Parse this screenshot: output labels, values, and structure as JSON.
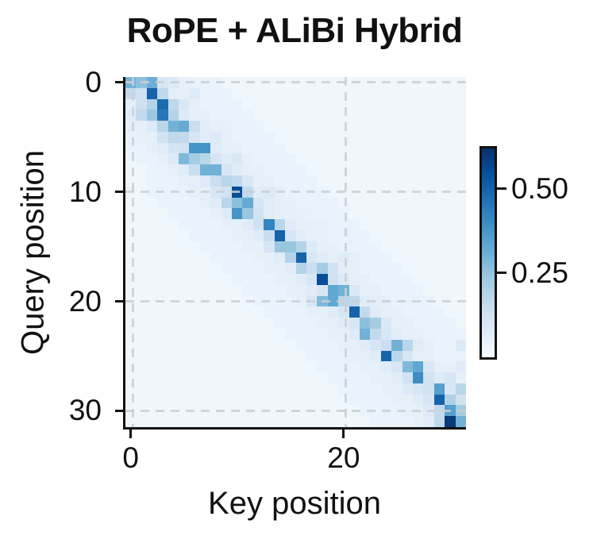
{
  "title": "RoPE + ALiBi Hybrid",
  "colors": {
    "text": "#111111",
    "spine": "#111111",
    "gridline": "#cbcfd4",
    "background": "#ffffff",
    "colormap_name": "Blues",
    "colormap_anchors": [
      "#f7fbff",
      "#deebf7",
      "#c6dbef",
      "#9ecae1",
      "#6baed6",
      "#4292c6",
      "#2171b5",
      "#08519c",
      "#08306b"
    ]
  },
  "chart_data": {
    "type": "heatmap",
    "title": "RoPE + ALiBi Hybrid",
    "xlabel": "Key position",
    "ylabel": "Query position",
    "n_rows": 32,
    "n_cols": 32,
    "colormap": "Blues",
    "vmin": 0,
    "vmax": 0.62,
    "grid": "dashed gridlines at tick positions, drawn over cells",
    "legend_position": "colorbar right",
    "x_ticks": [
      {
        "value": 0,
        "label": "0"
      },
      {
        "value": 20,
        "label": "20"
      }
    ],
    "y_ticks": [
      {
        "value": 0,
        "label": "0"
      },
      {
        "value": 10,
        "label": "10"
      },
      {
        "value": 20,
        "label": "20"
      },
      {
        "value": 30,
        "label": "30"
      }
    ],
    "colorbar_ticks": [
      {
        "value": 0.25,
        "label": "0.25"
      },
      {
        "value": 0.5,
        "label": "0.50"
      }
    ],
    "values": [
      [
        0.3,
        0.26,
        0.31,
        0.1,
        0.08,
        0.05,
        0.04,
        0.04,
        0.04,
        0.025,
        0.025,
        0.025,
        0.025,
        0.025,
        0.025,
        0.025,
        0.025,
        0.025,
        0.025,
        0.025,
        0.025,
        0.025,
        0.025,
        0.025,
        0.025,
        0.025,
        0.025,
        0.025,
        0.025,
        0.025,
        0.025,
        0.025
      ],
      [
        0.16,
        0.13,
        0.5,
        0.17,
        0.06,
        0.055,
        0.08,
        0.04,
        0.04,
        0.04,
        0.025,
        0.025,
        0.025,
        0.025,
        0.025,
        0.025,
        0.025,
        0.025,
        0.025,
        0.025,
        0.025,
        0.025,
        0.025,
        0.025,
        0.025,
        0.025,
        0.025,
        0.025,
        0.025,
        0.025,
        0.025,
        0.025
      ],
      [
        0.06,
        0.13,
        0.19,
        0.48,
        0.17,
        0.09,
        0.055,
        0.04,
        0.04,
        0.04,
        0.04,
        0.025,
        0.025,
        0.025,
        0.025,
        0.025,
        0.025,
        0.025,
        0.025,
        0.025,
        0.025,
        0.025,
        0.025,
        0.025,
        0.025,
        0.025,
        0.025,
        0.025,
        0.025,
        0.025,
        0.025,
        0.025
      ],
      [
        0.07,
        0.16,
        0.24,
        0.45,
        0.19,
        0.08,
        0.055,
        0.055,
        0.04,
        0.04,
        0.04,
        0.04,
        0.025,
        0.025,
        0.025,
        0.025,
        0.025,
        0.025,
        0.025,
        0.025,
        0.025,
        0.025,
        0.025,
        0.025,
        0.025,
        0.025,
        0.025,
        0.025,
        0.025,
        0.025,
        0.025,
        0.025
      ],
      [
        0.055,
        0.055,
        0.08,
        0.18,
        0.3,
        0.32,
        0.14,
        0.07,
        0.055,
        0.055,
        0.04,
        0.04,
        0.04,
        0.025,
        0.025,
        0.025,
        0.025,
        0.025,
        0.025,
        0.025,
        0.025,
        0.025,
        0.025,
        0.025,
        0.025,
        0.025,
        0.025,
        0.025,
        0.025,
        0.025,
        0.025,
        0.025
      ],
      [
        0.04,
        0.055,
        0.055,
        0.12,
        0.17,
        0.16,
        0.1,
        0.07,
        0.08,
        0.055,
        0.04,
        0.04,
        0.04,
        0.04,
        0.025,
        0.025,
        0.025,
        0.025,
        0.025,
        0.025,
        0.025,
        0.025,
        0.025,
        0.025,
        0.025,
        0.025,
        0.025,
        0.025,
        0.025,
        0.025,
        0.025,
        0.025
      ],
      [
        0.04,
        0.04,
        0.055,
        0.07,
        0.11,
        0.12,
        0.38,
        0.38,
        0.07,
        0.055,
        0.06,
        0.04,
        0.04,
        0.04,
        0.04,
        0.025,
        0.025,
        0.025,
        0.025,
        0.025,
        0.025,
        0.025,
        0.025,
        0.025,
        0.025,
        0.025,
        0.025,
        0.025,
        0.025,
        0.025,
        0.025,
        0.025
      ],
      [
        0.025,
        0.04,
        0.04,
        0.055,
        0.08,
        0.28,
        0.22,
        0.18,
        0.1,
        0.07,
        0.09,
        0.055,
        0.04,
        0.04,
        0.04,
        0.04,
        0.025,
        0.025,
        0.025,
        0.025,
        0.025,
        0.025,
        0.025,
        0.025,
        0.025,
        0.025,
        0.025,
        0.025,
        0.025,
        0.025,
        0.025,
        0.025
      ],
      [
        0.025,
        0.025,
        0.04,
        0.04,
        0.055,
        0.07,
        0.14,
        0.3,
        0.3,
        0.1,
        0.07,
        0.055,
        0.055,
        0.04,
        0.04,
        0.04,
        0.04,
        0.025,
        0.025,
        0.025,
        0.025,
        0.025,
        0.025,
        0.025,
        0.025,
        0.025,
        0.025,
        0.025,
        0.025,
        0.025,
        0.025,
        0.025
      ],
      [
        0.025,
        0.025,
        0.04,
        0.04,
        0.04,
        0.055,
        0.06,
        0.08,
        0.14,
        0.18,
        0.16,
        0.09,
        0.055,
        0.055,
        0.04,
        0.04,
        0.04,
        0.04,
        0.025,
        0.025,
        0.025,
        0.025,
        0.025,
        0.025,
        0.025,
        0.025,
        0.025,
        0.025,
        0.025,
        0.025,
        0.025,
        0.025
      ],
      [
        0.025,
        0.025,
        0.04,
        0.04,
        0.04,
        0.04,
        0.055,
        0.055,
        0.1,
        0.12,
        0.55,
        0.16,
        0.07,
        0.08,
        0.055,
        0.04,
        0.04,
        0.04,
        0.04,
        0.025,
        0.025,
        0.025,
        0.025,
        0.025,
        0.025,
        0.025,
        0.025,
        0.025,
        0.025,
        0.025,
        0.025,
        0.025
      ],
      [
        0.025,
        0.025,
        0.025,
        0.04,
        0.04,
        0.04,
        0.04,
        0.055,
        0.07,
        0.18,
        0.26,
        0.32,
        0.1,
        0.07,
        0.055,
        0.055,
        0.04,
        0.04,
        0.04,
        0.04,
        0.025,
        0.025,
        0.025,
        0.025,
        0.025,
        0.025,
        0.025,
        0.025,
        0.025,
        0.025,
        0.025,
        0.025
      ],
      [
        0.025,
        0.025,
        0.025,
        0.025,
        0.04,
        0.04,
        0.04,
        0.04,
        0.055,
        0.08,
        0.38,
        0.24,
        0.12,
        0.07,
        0.055,
        0.055,
        0.05,
        0.045,
        0.04,
        0.04,
        0.04,
        0.025,
        0.025,
        0.025,
        0.025,
        0.025,
        0.025,
        0.025,
        0.025,
        0.025,
        0.025,
        0.025
      ],
      [
        0.025,
        0.025,
        0.025,
        0.025,
        0.025,
        0.04,
        0.04,
        0.04,
        0.04,
        0.055,
        0.055,
        0.07,
        0.12,
        0.42,
        0.18,
        0.07,
        0.055,
        0.055,
        0.05,
        0.04,
        0.04,
        0.04,
        0.025,
        0.025,
        0.025,
        0.025,
        0.025,
        0.025,
        0.025,
        0.025,
        0.025,
        0.025
      ],
      [
        0.025,
        0.025,
        0.025,
        0.025,
        0.025,
        0.025,
        0.04,
        0.04,
        0.04,
        0.04,
        0.055,
        0.055,
        0.07,
        0.14,
        0.5,
        0.1,
        0.07,
        0.055,
        0.05,
        0.04,
        0.04,
        0.04,
        0.04,
        0.025,
        0.025,
        0.025,
        0.025,
        0.025,
        0.025,
        0.025,
        0.025,
        0.025
      ],
      [
        0.025,
        0.025,
        0.025,
        0.025,
        0.025,
        0.025,
        0.025,
        0.04,
        0.04,
        0.04,
        0.04,
        0.055,
        0.055,
        0.1,
        0.24,
        0.24,
        0.19,
        0.08,
        0.055,
        0.055,
        0.04,
        0.04,
        0.04,
        0.04,
        0.025,
        0.025,
        0.025,
        0.025,
        0.025,
        0.025,
        0.025,
        0.025
      ],
      [
        0.025,
        0.025,
        0.025,
        0.025,
        0.025,
        0.025,
        0.025,
        0.025,
        0.04,
        0.04,
        0.04,
        0.04,
        0.055,
        0.055,
        0.07,
        0.19,
        0.5,
        0.1,
        0.07,
        0.055,
        0.07,
        0.06,
        0.04,
        0.04,
        0.04,
        0.025,
        0.025,
        0.025,
        0.025,
        0.025,
        0.025,
        0.025
      ],
      [
        0.025,
        0.025,
        0.025,
        0.025,
        0.025,
        0.025,
        0.025,
        0.025,
        0.025,
        0.04,
        0.04,
        0.04,
        0.04,
        0.055,
        0.055,
        0.07,
        0.19,
        0.14,
        0.22,
        0.12,
        0.06,
        0.055,
        0.04,
        0.04,
        0.04,
        0.04,
        0.025,
        0.025,
        0.025,
        0.025,
        0.025,
        0.025
      ],
      [
        0.025,
        0.025,
        0.025,
        0.025,
        0.025,
        0.025,
        0.025,
        0.025,
        0.025,
        0.025,
        0.04,
        0.04,
        0.04,
        0.04,
        0.055,
        0.055,
        0.07,
        0.1,
        0.55,
        0.12,
        0.08,
        0.055,
        0.055,
        0.04,
        0.04,
        0.04,
        0.04,
        0.025,
        0.025,
        0.025,
        0.025,
        0.025
      ],
      [
        0.025,
        0.025,
        0.025,
        0.025,
        0.025,
        0.025,
        0.025,
        0.025,
        0.025,
        0.025,
        0.025,
        0.04,
        0.04,
        0.04,
        0.04,
        0.055,
        0.055,
        0.07,
        0.1,
        0.33,
        0.3,
        0.09,
        0.055,
        0.06,
        0.04,
        0.04,
        0.04,
        0.04,
        0.025,
        0.025,
        0.025,
        0.025
      ],
      [
        0.025,
        0.025,
        0.025,
        0.025,
        0.025,
        0.025,
        0.025,
        0.025,
        0.025,
        0.025,
        0.025,
        0.025,
        0.04,
        0.04,
        0.04,
        0.04,
        0.055,
        0.1,
        0.28,
        0.33,
        0.18,
        0.17,
        0.07,
        0.06,
        0.055,
        0.04,
        0.04,
        0.04,
        0.04,
        0.025,
        0.025,
        0.025
      ],
      [
        0.025,
        0.025,
        0.025,
        0.025,
        0.025,
        0.025,
        0.025,
        0.025,
        0.025,
        0.025,
        0.025,
        0.025,
        0.025,
        0.04,
        0.04,
        0.04,
        0.04,
        0.055,
        0.055,
        0.07,
        0.1,
        0.5,
        0.16,
        0.07,
        0.055,
        0.055,
        0.04,
        0.04,
        0.04,
        0.04,
        0.025,
        0.025
      ],
      [
        0.025,
        0.025,
        0.025,
        0.025,
        0.025,
        0.025,
        0.025,
        0.025,
        0.025,
        0.025,
        0.025,
        0.025,
        0.025,
        0.025,
        0.04,
        0.04,
        0.04,
        0.04,
        0.055,
        0.055,
        0.07,
        0.1,
        0.26,
        0.22,
        0.09,
        0.055,
        0.055,
        0.04,
        0.04,
        0.04,
        0.04,
        0.025
      ],
      [
        0.025,
        0.025,
        0.025,
        0.025,
        0.025,
        0.025,
        0.025,
        0.025,
        0.025,
        0.025,
        0.025,
        0.025,
        0.025,
        0.025,
        0.025,
        0.04,
        0.04,
        0.04,
        0.04,
        0.055,
        0.055,
        0.07,
        0.3,
        0.16,
        0.1,
        0.07,
        0.055,
        0.055,
        0.04,
        0.04,
        0.04,
        0.04
      ],
      [
        0.025,
        0.025,
        0.025,
        0.025,
        0.025,
        0.025,
        0.025,
        0.025,
        0.025,
        0.025,
        0.025,
        0.025,
        0.025,
        0.025,
        0.025,
        0.025,
        0.04,
        0.04,
        0.04,
        0.04,
        0.055,
        0.055,
        0.07,
        0.1,
        0.14,
        0.3,
        0.18,
        0.07,
        0.055,
        0.04,
        0.04,
        0.08
      ],
      [
        0.025,
        0.025,
        0.025,
        0.025,
        0.025,
        0.025,
        0.025,
        0.025,
        0.025,
        0.025,
        0.025,
        0.025,
        0.025,
        0.025,
        0.025,
        0.025,
        0.025,
        0.04,
        0.04,
        0.04,
        0.04,
        0.055,
        0.055,
        0.07,
        0.5,
        0.18,
        0.1,
        0.06,
        0.055,
        0.04,
        0.04,
        0.04
      ],
      [
        0.025,
        0.025,
        0.025,
        0.025,
        0.025,
        0.025,
        0.025,
        0.025,
        0.025,
        0.025,
        0.025,
        0.025,
        0.025,
        0.025,
        0.025,
        0.025,
        0.025,
        0.025,
        0.04,
        0.04,
        0.04,
        0.04,
        0.055,
        0.055,
        0.07,
        0.1,
        0.28,
        0.33,
        0.09,
        0.055,
        0.055,
        0.07
      ],
      [
        0.025,
        0.025,
        0.025,
        0.025,
        0.025,
        0.025,
        0.025,
        0.025,
        0.025,
        0.025,
        0.025,
        0.025,
        0.025,
        0.025,
        0.025,
        0.025,
        0.025,
        0.025,
        0.025,
        0.04,
        0.04,
        0.04,
        0.04,
        0.055,
        0.055,
        0.07,
        0.12,
        0.4,
        0.12,
        0.08,
        0.1,
        0.055
      ],
      [
        0.025,
        0.025,
        0.025,
        0.025,
        0.025,
        0.025,
        0.025,
        0.025,
        0.025,
        0.025,
        0.025,
        0.025,
        0.025,
        0.025,
        0.025,
        0.025,
        0.025,
        0.025,
        0.025,
        0.025,
        0.04,
        0.04,
        0.04,
        0.04,
        0.055,
        0.055,
        0.08,
        0.1,
        0.12,
        0.35,
        0.1,
        0.18
      ],
      [
        0.025,
        0.025,
        0.025,
        0.025,
        0.025,
        0.025,
        0.025,
        0.025,
        0.025,
        0.025,
        0.025,
        0.025,
        0.025,
        0.025,
        0.025,
        0.025,
        0.025,
        0.025,
        0.025,
        0.025,
        0.025,
        0.04,
        0.04,
        0.04,
        0.04,
        0.055,
        0.055,
        0.07,
        0.1,
        0.5,
        0.2,
        0.12
      ],
      [
        0.025,
        0.025,
        0.025,
        0.025,
        0.025,
        0.025,
        0.025,
        0.025,
        0.025,
        0.025,
        0.025,
        0.025,
        0.025,
        0.025,
        0.025,
        0.025,
        0.025,
        0.025,
        0.025,
        0.025,
        0.025,
        0.025,
        0.04,
        0.04,
        0.04,
        0.04,
        0.055,
        0.055,
        0.08,
        0.16,
        0.35,
        0.22
      ],
      [
        0.025,
        0.025,
        0.025,
        0.025,
        0.025,
        0.025,
        0.025,
        0.025,
        0.025,
        0.025,
        0.025,
        0.025,
        0.025,
        0.025,
        0.025,
        0.025,
        0.025,
        0.025,
        0.025,
        0.025,
        0.025,
        0.025,
        0.025,
        0.04,
        0.04,
        0.04,
        0.04,
        0.055,
        0.07,
        0.16,
        0.6,
        0.3
      ]
    ]
  }
}
